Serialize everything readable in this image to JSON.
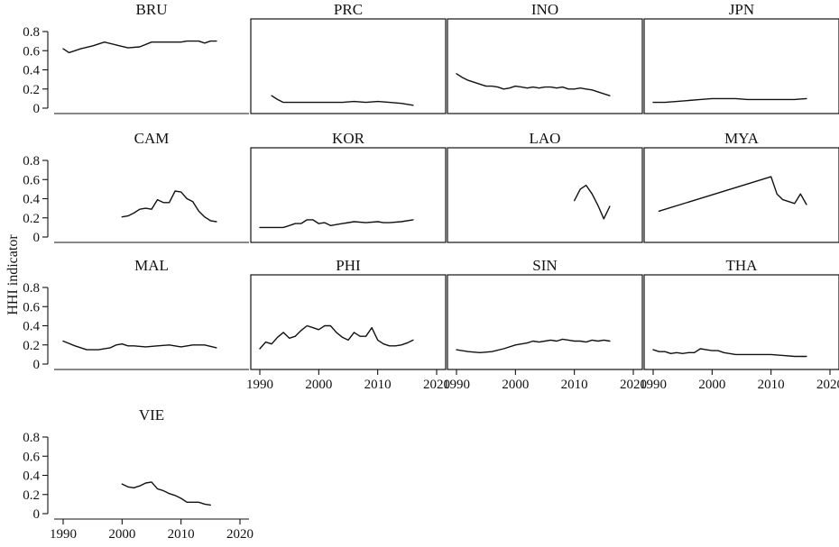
{
  "chart_data": {
    "type": "line",
    "ylabel": "HHI indicator",
    "xlim": [
      1990,
      2020
    ],
    "ylim": [
      0,
      0.8
    ],
    "xticks": [
      1990,
      2000,
      2010,
      2020
    ],
    "yticks": [
      0,
      0.2,
      0.4,
      0.6,
      0.8
    ],
    "xtick_labels": [
      "1990",
      "2000",
      "2010",
      "2020"
    ],
    "ytick_labels": [
      "0",
      "0.2",
      "0.4",
      "0.6",
      "0.8"
    ],
    "grid": false,
    "panels": [
      {
        "title": "BRU",
        "x": [
          1990,
          1991,
          1993,
          1995,
          1997,
          1999,
          2001,
          2003,
          2005,
          2007,
          2009,
          2010,
          2011,
          2012,
          2013,
          2014,
          2015,
          2016
        ],
        "y": [
          0.62,
          0.58,
          0.62,
          0.65,
          0.69,
          0.66,
          0.63,
          0.64,
          0.69,
          0.69,
          0.69,
          0.69,
          0.7,
          0.7,
          0.7,
          0.68,
          0.7,
          0.7
        ]
      },
      {
        "title": "PRC",
        "x": [
          1992,
          1993,
          1994,
          1996,
          1998,
          2000,
          2002,
          2004,
          2006,
          2008,
          2010,
          2012,
          2014,
          2016
        ],
        "y": [
          0.13,
          0.09,
          0.06,
          0.06,
          0.06,
          0.06,
          0.06,
          0.06,
          0.07,
          0.06,
          0.07,
          0.06,
          0.05,
          0.03
        ]
      },
      {
        "title": "INO",
        "x": [
          1990,
          1991,
          1992,
          1993,
          1994,
          1995,
          1996,
          1997,
          1998,
          1999,
          2000,
          2001,
          2002,
          2003,
          2004,
          2005,
          2006,
          2007,
          2008,
          2009,
          2010,
          2011,
          2012,
          2013,
          2014,
          2015,
          2016
        ],
        "y": [
          0.36,
          0.32,
          0.29,
          0.27,
          0.25,
          0.23,
          0.23,
          0.22,
          0.2,
          0.21,
          0.23,
          0.22,
          0.21,
          0.22,
          0.21,
          0.22,
          0.22,
          0.21,
          0.22,
          0.2,
          0.2,
          0.21,
          0.2,
          0.19,
          0.17,
          0.15,
          0.13
        ]
      },
      {
        "title": "JPN",
        "x": [
          1990,
          1992,
          1994,
          1996,
          1998,
          2000,
          2002,
          2004,
          2006,
          2008,
          2010,
          2012,
          2014,
          2016
        ],
        "y": [
          0.06,
          0.06,
          0.07,
          0.08,
          0.09,
          0.1,
          0.1,
          0.1,
          0.09,
          0.09,
          0.09,
          0.09,
          0.09,
          0.1
        ]
      },
      {
        "title": "CAM",
        "x": [
          2000,
          2001,
          2002,
          2003,
          2004,
          2005,
          2006,
          2007,
          2008,
          2009,
          2010,
          2011,
          2012,
          2013,
          2014,
          2015,
          2016
        ],
        "y": [
          0.21,
          0.22,
          0.25,
          0.29,
          0.3,
          0.29,
          0.39,
          0.36,
          0.36,
          0.48,
          0.47,
          0.4,
          0.37,
          0.27,
          0.21,
          0.17,
          0.16
        ]
      },
      {
        "title": "KOR",
        "x": [
          1990,
          1992,
          1994,
          1995,
          1996,
          1997,
          1998,
          1999,
          2000,
          2001,
          2002,
          2003,
          2004,
          2006,
          2008,
          2010,
          2011,
          2012,
          2014,
          2016
        ],
        "y": [
          0.1,
          0.1,
          0.1,
          0.12,
          0.14,
          0.14,
          0.18,
          0.18,
          0.14,
          0.15,
          0.12,
          0.13,
          0.14,
          0.16,
          0.15,
          0.16,
          0.15,
          0.15,
          0.16,
          0.18
        ]
      },
      {
        "title": "LAO",
        "x": [
          2010,
          2011,
          2012,
          2013,
          2014,
          2015,
          2016
        ],
        "y": [
          0.38,
          0.5,
          0.54,
          0.45,
          0.33,
          0.19,
          0.32
        ]
      },
      {
        "title": "MYA",
        "x": [
          1991,
          2010,
          2011,
          2012,
          2013,
          2014,
          2015,
          2016
        ],
        "y": [
          0.27,
          0.63,
          0.45,
          0.39,
          0.37,
          0.35,
          0.45,
          0.34
        ]
      },
      {
        "title": "MAL",
        "x": [
          1990,
          1992,
          1994,
          1996,
          1998,
          1999,
          2000,
          2001,
          2002,
          2004,
          2006,
          2008,
          2010,
          2012,
          2014,
          2016
        ],
        "y": [
          0.24,
          0.19,
          0.15,
          0.15,
          0.17,
          0.2,
          0.21,
          0.19,
          0.19,
          0.18,
          0.19,
          0.2,
          0.18,
          0.2,
          0.2,
          0.17
        ]
      },
      {
        "title": "PHI",
        "x": [
          1990,
          1991,
          1992,
          1993,
          1994,
          1995,
          1996,
          1997,
          1998,
          1999,
          2000,
          2001,
          2002,
          2003,
          2004,
          2005,
          2006,
          2007,
          2008,
          2009,
          2010,
          2011,
          2012,
          2013,
          2014,
          2015,
          2016
        ],
        "y": [
          0.16,
          0.23,
          0.21,
          0.28,
          0.33,
          0.27,
          0.29,
          0.35,
          0.4,
          0.38,
          0.36,
          0.4,
          0.4,
          0.33,
          0.28,
          0.25,
          0.33,
          0.29,
          0.29,
          0.38,
          0.25,
          0.21,
          0.19,
          0.19,
          0.2,
          0.22,
          0.25
        ]
      },
      {
        "title": "SIN",
        "x": [
          1990,
          1992,
          1994,
          1996,
          1998,
          2000,
          2001,
          2002,
          2003,
          2004,
          2005,
          2006,
          2007,
          2008,
          2009,
          2010,
          2011,
          2012,
          2013,
          2014,
          2015,
          2016
        ],
        "y": [
          0.15,
          0.13,
          0.12,
          0.13,
          0.16,
          0.2,
          0.21,
          0.22,
          0.24,
          0.23,
          0.24,
          0.25,
          0.24,
          0.26,
          0.25,
          0.24,
          0.24,
          0.23,
          0.25,
          0.24,
          0.25,
          0.24
        ]
      },
      {
        "title": "THA",
        "x": [
          1990,
          1991,
          1992,
          1993,
          1994,
          1995,
          1996,
          1997,
          1998,
          1999,
          2000,
          2001,
          2002,
          2004,
          2006,
          2008,
          2010,
          2012,
          2014,
          2016
        ],
        "y": [
          0.15,
          0.13,
          0.13,
          0.11,
          0.12,
          0.11,
          0.12,
          0.12,
          0.16,
          0.15,
          0.14,
          0.14,
          0.12,
          0.1,
          0.1,
          0.1,
          0.1,
          0.09,
          0.08,
          0.08
        ]
      },
      {
        "title": "VIE",
        "x": [
          2000,
          2001,
          2002,
          2003,
          2004,
          2005,
          2006,
          2007,
          2008,
          2009,
          2010,
          2011,
          2012,
          2013,
          2014,
          2015
        ],
        "y": [
          0.31,
          0.28,
          0.27,
          0.29,
          0.32,
          0.33,
          0.26,
          0.24,
          0.21,
          0.19,
          0.16,
          0.12,
          0.12,
          0.12,
          0.1,
          0.09
        ]
      }
    ]
  }
}
